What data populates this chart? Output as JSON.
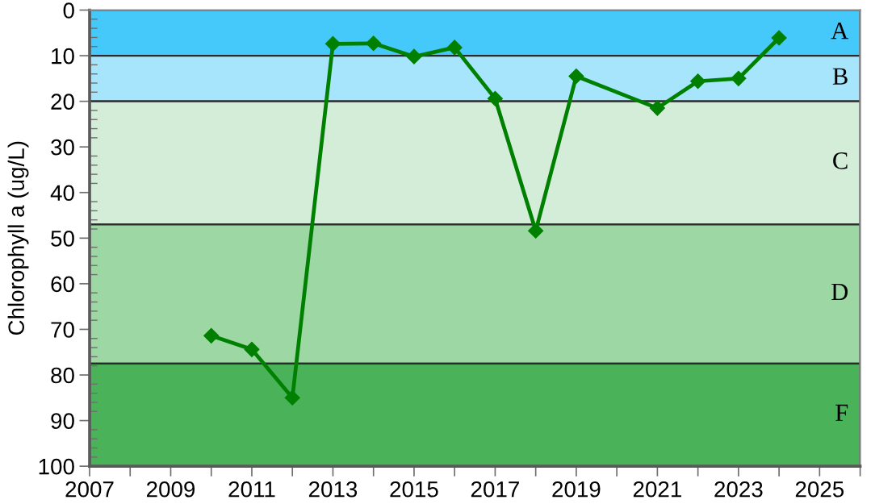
{
  "chart_data": {
    "type": "line",
    "ylabel": "Chlorophyll a (ug/L)",
    "x": [
      2010,
      2011,
      2012,
      2013,
      2014,
      2015,
      2016,
      2017,
      2018,
      2019,
      2021,
      2022,
      2023,
      2024
    ],
    "series": [
      {
        "color": "#008000",
        "values": [
          71.4,
          74.4,
          85.0,
          7.4,
          7.3,
          10.2,
          8.2,
          19.4,
          48.4,
          14.5,
          21.5,
          15.6,
          15.0,
          6.1
        ]
      }
    ],
    "marker": "diamond",
    "line_style": "solid",
    "grid": false,
    "xlim": [
      2007,
      2026
    ],
    "xticks": [
      2007,
      {
        "value": 2008,
        "label": null
      },
      2009,
      {
        "value": 2010,
        "label": null
      },
      2011,
      {
        "value": 2012,
        "label": null
      },
      2013,
      {
        "value": 2014,
        "label": null
      },
      2015,
      {
        "value": 2016,
        "label": null
      },
      2017,
      {
        "value": 2018,
        "label": null
      },
      2019,
      {
        "value": 2020,
        "label": null
      },
      2021,
      {
        "value": 2022,
        "label": null
      },
      2023,
      {
        "value": 2024,
        "label": null
      },
      2025,
      {
        "value": 2026,
        "label": null
      }
    ],
    "ylim": [
      100,
      0
    ],
    "yticks": [
      0,
      {
        "value": 2,
        "label": null
      },
      {
        "value": 4,
        "label": null
      },
      {
        "value": 6,
        "label": null
      },
      {
        "value": 8,
        "label": null
      },
      10,
      {
        "value": 12,
        "label": null
      },
      {
        "value": 14,
        "label": null
      },
      {
        "value": 16,
        "label": null
      },
      {
        "value": 18,
        "label": null
      },
      20,
      {
        "value": 22,
        "label": null
      },
      {
        "value": 24,
        "label": null
      },
      {
        "value": 26,
        "label": null
      },
      {
        "value": 28,
        "label": null
      },
      30,
      {
        "value": 32,
        "label": null
      },
      {
        "value": 34,
        "label": null
      },
      {
        "value": 36,
        "label": null
      },
      {
        "value": 38,
        "label": null
      },
      40,
      {
        "value": 42,
        "label": null
      },
      {
        "value": 44,
        "label": null
      },
      {
        "value": 46,
        "label": null
      },
      {
        "value": 48,
        "label": null
      },
      50,
      {
        "value": 52,
        "label": null
      },
      {
        "value": 54,
        "label": null
      },
      {
        "value": 56,
        "label": null
      },
      {
        "value": 58,
        "label": null
      },
      60,
      {
        "value": 62,
        "label": null
      },
      {
        "value": 64,
        "label": null
      },
      {
        "value": 66,
        "label": null
      },
      {
        "value": 68,
        "label": null
      },
      70,
      {
        "value": 72,
        "label": null
      },
      {
        "value": 74,
        "label": null
      },
      {
        "value": 76,
        "label": null
      },
      {
        "value": 78,
        "label": null
      },
      80,
      {
        "value": 82,
        "label": null
      },
      {
        "value": 84,
        "label": null
      },
      {
        "value": 86,
        "label": null
      },
      {
        "value": 88,
        "label": null
      },
      90,
      {
        "value": 92,
        "label": null
      },
      {
        "value": 94,
        "label": null
      },
      {
        "value": 96,
        "label": null
      },
      {
        "value": 98,
        "label": null
      },
      100
    ],
    "bands": [
      {
        "axis": "y",
        "from": 0,
        "to": 10,
        "label": "A",
        "color": "#45c9fb"
      },
      {
        "axis": "y",
        "from": 10,
        "to": 20,
        "label": "B",
        "color": "#a6e5fb"
      },
      {
        "axis": "y",
        "from": 20,
        "to": 47,
        "label": "C",
        "color": "#d4edd8"
      },
      {
        "axis": "y",
        "from": 47,
        "to": 77.5,
        "label": "D",
        "color": "#9dd8a4"
      },
      {
        "axis": "y",
        "from": 77.5,
        "to": 100,
        "label": "F",
        "color": "#4ab35a"
      }
    ]
  }
}
